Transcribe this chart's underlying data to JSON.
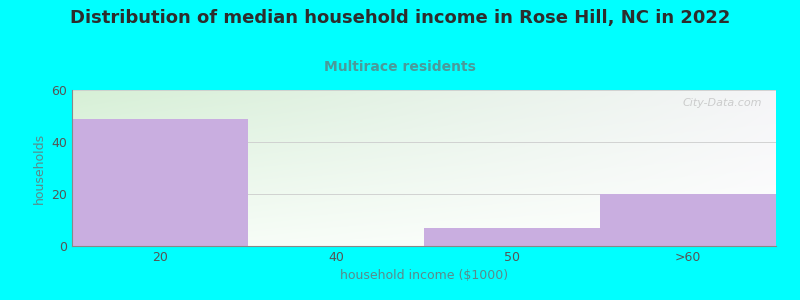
{
  "title": "Distribution of median household income in Rose Hill, NC in 2022",
  "subtitle": "Multirace residents",
  "xlabel": "household income ($1000)",
  "ylabel": "households",
  "categories": [
    "20",
    "40",
    "50",
    ">60"
  ],
  "values": [
    49,
    0,
    7,
    20
  ],
  "bar_color": "#c9aee0",
  "ylim": [
    0,
    60
  ],
  "yticks": [
    0,
    20,
    40,
    60
  ],
  "background_color": "#00ffff",
  "plot_bg_top_left": "#d8f0d8",
  "plot_bg_right": "#f5f5f5",
  "plot_bg_bottom": "#ffffff",
  "title_color": "#2d2d2d",
  "subtitle_color": "#4a9a9a",
  "axis_label_color": "#5a8a8a",
  "tick_color": "#555555",
  "title_fontsize": 13,
  "subtitle_fontsize": 10,
  "axis_label_fontsize": 9,
  "watermark": "City-Data.com"
}
